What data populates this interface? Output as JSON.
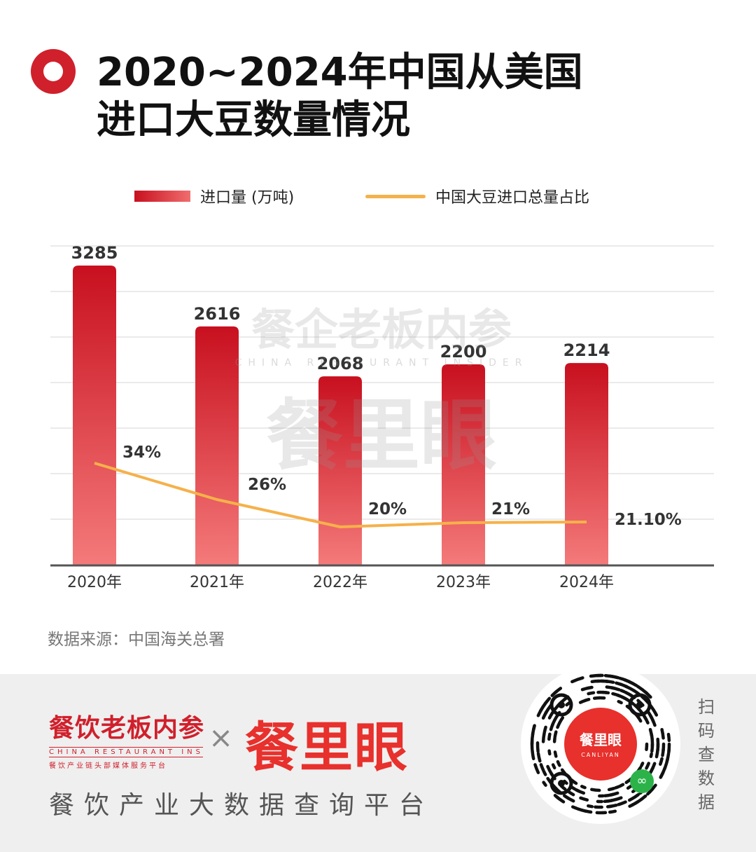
{
  "title": {
    "line1": "2020~2024年中国从美国",
    "line2": "进口大豆数量情况"
  },
  "legend": {
    "bar_label": "进口量 (万吨)",
    "line_label": "中国大豆进口总量占比"
  },
  "colors": {
    "accent": "#d0202c",
    "bar_top": "#c8101f",
    "bar_bottom": "#f47a7a",
    "line": "#f5b14a",
    "grid": "#dddddd",
    "axis": "#555555"
  },
  "chart_data": {
    "type": "bar",
    "categories": [
      "2020年",
      "2021年",
      "2022年",
      "2023年",
      "2024年"
    ],
    "series": [
      {
        "name": "进口量 (万吨)",
        "type": "bar",
        "values": [
          3285,
          2616,
          2068,
          2200,
          2214
        ],
        "labels": [
          "3285",
          "2616",
          "2068",
          "2200",
          "2214"
        ]
      },
      {
        "name": "中国大豆进口总量占比",
        "type": "line",
        "values": [
          34,
          26,
          20,
          21,
          21.1
        ],
        "labels": [
          "34%",
          "26%",
          "20%",
          "21%",
          "21.10%"
        ]
      }
    ],
    "ylim": [
      0,
      3500
    ],
    "grid": true,
    "legend_position": "top"
  },
  "source": "数据来源：中国海关总署",
  "watermark": {
    "line1": "餐企老板内参",
    "line2": "CHINA RESTAURANT INSIDER",
    "line3": "餐里眼"
  },
  "footer": {
    "brand_left_cn": "餐饮老板内参",
    "brand_left_en": "CHINA RESTAURANT INSIDER",
    "brand_left_sub": "餐饮产业链头部媒体服务平台",
    "times": "×",
    "brand_right": "餐里眼",
    "tagline": "餐饮产业大数据查询平台",
    "qr_brand": "餐里眼",
    "qr_brand_en": "CANLIYAN",
    "scan": "扫码查数据"
  }
}
